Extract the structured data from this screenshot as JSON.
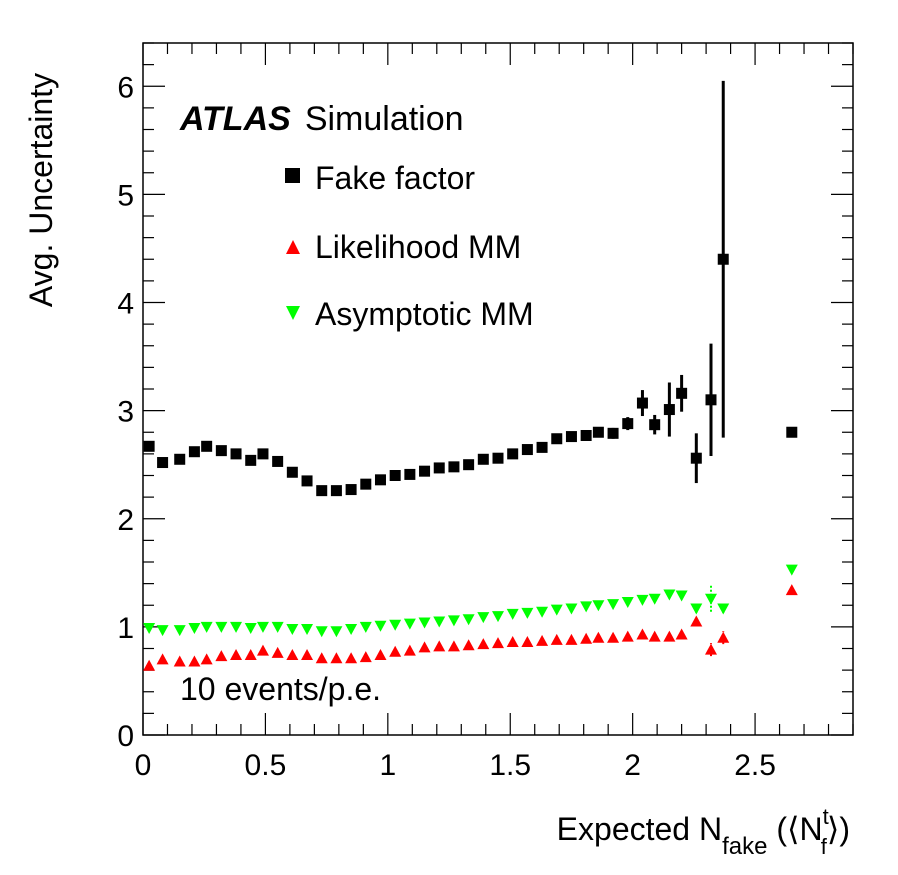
{
  "chart_data": {
    "type": "scatter",
    "title": "",
    "experiment": "ATLAS",
    "experiment_suffix": "Simulation",
    "annotation": "10 events/p.e.",
    "xlabel": {
      "main": "Expected N",
      "sub": "fake",
      "paren_open": " (⟨N",
      "sup": "t",
      "sub2": "f",
      "paren_close": "⟩)"
    },
    "ylabel": "Avg. Uncertainty",
    "xlim": [
      0,
      2.9
    ],
    "ylim": [
      0,
      6.4
    ],
    "xticks": [
      0,
      0.5,
      1,
      1.5,
      2,
      2.5
    ],
    "xtick_labels": [
      "0",
      "0.5",
      "1",
      "1.5",
      "2",
      "2.5"
    ],
    "yticks": [
      0,
      1,
      2,
      3,
      4,
      5,
      6
    ],
    "ytick_labels": [
      "0",
      "1",
      "2",
      "3",
      "4",
      "5",
      "6"
    ],
    "legend_position": "top-left",
    "series": [
      {
        "name": "Fake factor",
        "marker": "square",
        "color": "#000000",
        "points": [
          [
            0.025,
            2.67,
            0
          ],
          [
            0.08,
            2.52,
            0
          ],
          [
            0.15,
            2.55,
            0
          ],
          [
            0.21,
            2.62,
            0
          ],
          [
            0.26,
            2.67,
            0
          ],
          [
            0.32,
            2.63,
            0
          ],
          [
            0.38,
            2.6,
            0
          ],
          [
            0.44,
            2.54,
            0
          ],
          [
            0.49,
            2.6,
            0
          ],
          [
            0.55,
            2.53,
            0
          ],
          [
            0.61,
            2.43,
            0
          ],
          [
            0.67,
            2.35,
            0
          ],
          [
            0.73,
            2.26,
            0
          ],
          [
            0.79,
            2.26,
            0
          ],
          [
            0.85,
            2.27,
            0
          ],
          [
            0.91,
            2.32,
            0
          ],
          [
            0.97,
            2.36,
            0
          ],
          [
            1.03,
            2.4,
            0
          ],
          [
            1.09,
            2.41,
            0
          ],
          [
            1.15,
            2.44,
            0
          ],
          [
            1.21,
            2.47,
            0
          ],
          [
            1.27,
            2.48,
            0
          ],
          [
            1.33,
            2.5,
            0
          ],
          [
            1.39,
            2.55,
            0
          ],
          [
            1.45,
            2.56,
            0
          ],
          [
            1.51,
            2.6,
            0
          ],
          [
            1.57,
            2.64,
            0
          ],
          [
            1.63,
            2.66,
            0
          ],
          [
            1.69,
            2.74,
            0
          ],
          [
            1.75,
            2.76,
            0
          ],
          [
            1.81,
            2.77,
            0
          ],
          [
            1.86,
            2.8,
            0
          ],
          [
            1.92,
            2.79,
            0.05
          ],
          [
            1.98,
            2.88,
            0.06
          ],
          [
            2.04,
            3.07,
            0.12
          ],
          [
            2.09,
            2.87,
            0.09
          ],
          [
            2.15,
            3.01,
            0.25
          ],
          [
            2.2,
            3.16,
            0.17
          ],
          [
            2.26,
            2.56,
            0.23
          ],
          [
            2.32,
            3.1,
            0.52
          ],
          [
            2.37,
            4.4,
            1.65
          ],
          [
            2.65,
            2.8,
            0
          ]
        ]
      },
      {
        "name": "Likelihood MM",
        "marker": "triangle-up",
        "color": "#ff0000",
        "points": [
          [
            0.025,
            0.64,
            0
          ],
          [
            0.08,
            0.7,
            0
          ],
          [
            0.15,
            0.68,
            0
          ],
          [
            0.21,
            0.68,
            0
          ],
          [
            0.26,
            0.7,
            0
          ],
          [
            0.32,
            0.73,
            0
          ],
          [
            0.38,
            0.74,
            0
          ],
          [
            0.44,
            0.74,
            0
          ],
          [
            0.49,
            0.78,
            0
          ],
          [
            0.55,
            0.76,
            0
          ],
          [
            0.61,
            0.74,
            0
          ],
          [
            0.67,
            0.74,
            0
          ],
          [
            0.73,
            0.71,
            0
          ],
          [
            0.79,
            0.71,
            0
          ],
          [
            0.85,
            0.71,
            0
          ],
          [
            0.91,
            0.72,
            0
          ],
          [
            0.97,
            0.74,
            0
          ],
          [
            1.03,
            0.77,
            0
          ],
          [
            1.09,
            0.78,
            0
          ],
          [
            1.15,
            0.81,
            0
          ],
          [
            1.21,
            0.82,
            0
          ],
          [
            1.27,
            0.82,
            0
          ],
          [
            1.33,
            0.83,
            0
          ],
          [
            1.39,
            0.84,
            0
          ],
          [
            1.45,
            0.85,
            0
          ],
          [
            1.51,
            0.86,
            0
          ],
          [
            1.57,
            0.86,
            0
          ],
          [
            1.63,
            0.87,
            0
          ],
          [
            1.69,
            0.88,
            0
          ],
          [
            1.75,
            0.88,
            0
          ],
          [
            1.81,
            0.89,
            0
          ],
          [
            1.86,
            0.9,
            0
          ],
          [
            1.92,
            0.9,
            0
          ],
          [
            1.98,
            0.91,
            0
          ],
          [
            2.04,
            0.93,
            0
          ],
          [
            2.09,
            0.91,
            0
          ],
          [
            2.15,
            0.91,
            0
          ],
          [
            2.2,
            0.93,
            0
          ],
          [
            2.26,
            1.05,
            0.03
          ],
          [
            2.32,
            0.79,
            0.06
          ],
          [
            2.37,
            0.9,
            0.06
          ],
          [
            2.65,
            1.34,
            0
          ]
        ]
      },
      {
        "name": "Asymptotic MM",
        "marker": "triangle-down",
        "color": "#00ff00",
        "points": [
          [
            0.025,
            0.99,
            0
          ],
          [
            0.08,
            0.97,
            0
          ],
          [
            0.15,
            0.97,
            0
          ],
          [
            0.21,
            0.99,
            0
          ],
          [
            0.26,
            1.0,
            0
          ],
          [
            0.32,
            1.0,
            0
          ],
          [
            0.38,
            1.0,
            0
          ],
          [
            0.44,
            0.99,
            0
          ],
          [
            0.49,
            1.0,
            0
          ],
          [
            0.55,
            1.0,
            0
          ],
          [
            0.61,
            0.98,
            0
          ],
          [
            0.67,
            0.98,
            0
          ],
          [
            0.73,
            0.96,
            0
          ],
          [
            0.79,
            0.96,
            0
          ],
          [
            0.85,
            0.98,
            0
          ],
          [
            0.91,
            1.0,
            0
          ],
          [
            0.97,
            1.01,
            0
          ],
          [
            1.03,
            1.02,
            0
          ],
          [
            1.09,
            1.03,
            0
          ],
          [
            1.15,
            1.04,
            0
          ],
          [
            1.21,
            1.05,
            0
          ],
          [
            1.27,
            1.06,
            0
          ],
          [
            1.33,
            1.07,
            0
          ],
          [
            1.39,
            1.09,
            0
          ],
          [
            1.45,
            1.1,
            0
          ],
          [
            1.51,
            1.12,
            0
          ],
          [
            1.57,
            1.13,
            0
          ],
          [
            1.63,
            1.14,
            0
          ],
          [
            1.69,
            1.16,
            0
          ],
          [
            1.75,
            1.17,
            0
          ],
          [
            1.81,
            1.19,
            0
          ],
          [
            1.86,
            1.2,
            0
          ],
          [
            1.92,
            1.21,
            0
          ],
          [
            1.98,
            1.23,
            0
          ],
          [
            2.04,
            1.25,
            0
          ],
          [
            2.09,
            1.26,
            0
          ],
          [
            2.15,
            1.3,
            0
          ],
          [
            2.2,
            1.29,
            0
          ],
          [
            2.26,
            1.17,
            0.04
          ],
          [
            2.32,
            1.26,
            0.12
          ],
          [
            2.37,
            1.17,
            0.04
          ],
          [
            2.65,
            1.53,
            0
          ]
        ]
      }
    ]
  }
}
